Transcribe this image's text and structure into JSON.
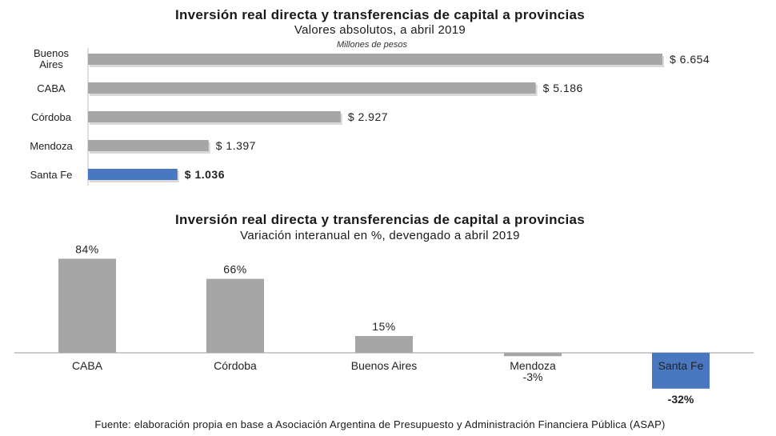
{
  "chart_data": [
    {
      "type": "bar",
      "orientation": "horizontal",
      "title": "Inversión real directa y transferencias de capital a provincias",
      "subtitle": "Valores absolutos, a abril 2019",
      "unit_label": "Millones de pesos",
      "categories": [
        "Buenos Aires",
        "CABA",
        "Córdoba",
        "Mendoza",
        "Santa Fe"
      ],
      "values": [
        6654,
        5186,
        2927,
        1397,
        1036
      ],
      "data_labels": [
        "$ 6.654",
        "$ 5.186",
        "$ 2.927",
        "$ 1.397",
        "$ 1.036"
      ],
      "highlight": "Santa Fe",
      "colors": {
        "default": "#a6a6a6",
        "highlight": "#4a78c0"
      },
      "legend": "none",
      "grid": false
    },
    {
      "type": "bar",
      "orientation": "vertical",
      "title": "Inversión real directa y transferencias de capital a provincias",
      "subtitle": "Variación interanual en %, devengado a abril 2019",
      "categories": [
        "CABA",
        "Córdoba",
        "Buenos Aires",
        "Mendoza",
        "Santa Fe"
      ],
      "values": [
        84,
        66,
        15,
        -3,
        -32
      ],
      "data_labels": [
        "84%",
        "66%",
        "15%",
        "-3%",
        "-32%"
      ],
      "highlight": "Santa Fe",
      "colors": {
        "default": "#a6a6a6",
        "highlight": "#4a78c0"
      },
      "legend": "none",
      "grid": false
    }
  ],
  "source": "Fuente: elaboración propia en base a Asociación Argentina de Presupuesto y Administración Financiera Pública (ASAP)"
}
